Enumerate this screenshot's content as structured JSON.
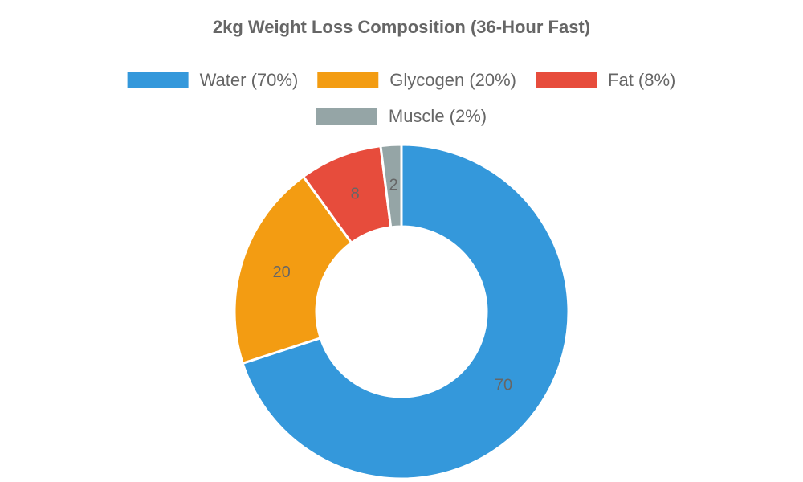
{
  "chart_data": {
    "type": "doughnut",
    "title": "2kg Weight Loss Composition (36-Hour Fast)",
    "categories": [
      "Water (70%)",
      "Glycogen (20%)",
      "Fat (8%)",
      "Muscle (2%)"
    ],
    "values": [
      70,
      20,
      8,
      2
    ],
    "colors": [
      "#3498db",
      "#f39c12",
      "#e74c3c",
      "#95a5a6"
    ],
    "legend": "top"
  }
}
